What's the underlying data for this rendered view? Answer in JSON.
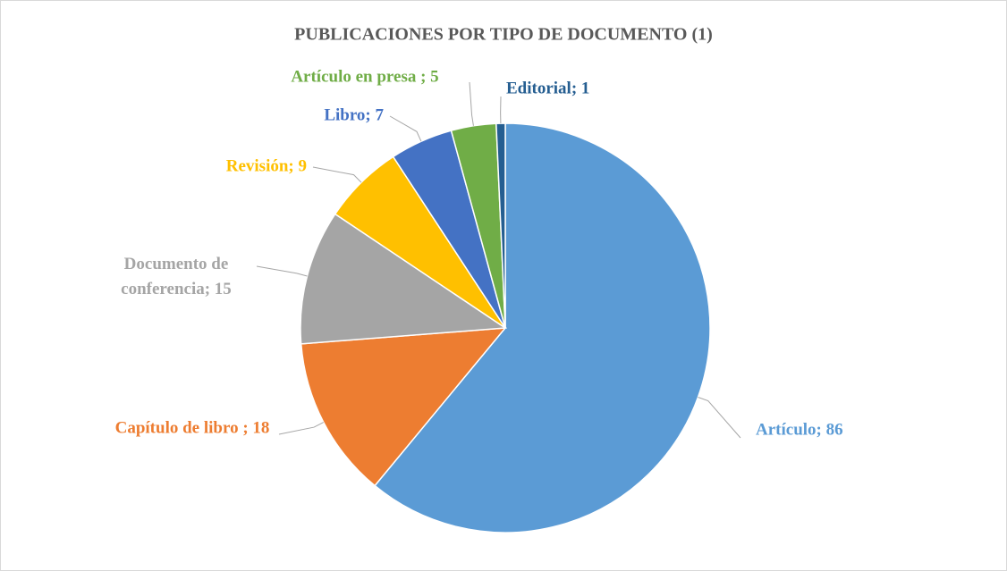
{
  "chart_data": {
    "type": "pie",
    "title": "PUBLICACIONES POR TIPO DE DOCUMENTO (1)",
    "values": [
      86,
      18,
      15,
      9,
      7,
      5,
      1
    ],
    "value_labels": [
      "Artículo; 86",
      "Capítulo de libro ; 18",
      "Documento de conferencia; 15",
      "Revisión; 9",
      "Libro; 7",
      "Artículo en presa ; 5",
      "Editorial; 1"
    ],
    "colors": [
      "#5b9bd5",
      "#ed7d31",
      "#a5a5a5",
      "#ffc000",
      "#4472c4",
      "#70ad47",
      "#255e91"
    ]
  }
}
